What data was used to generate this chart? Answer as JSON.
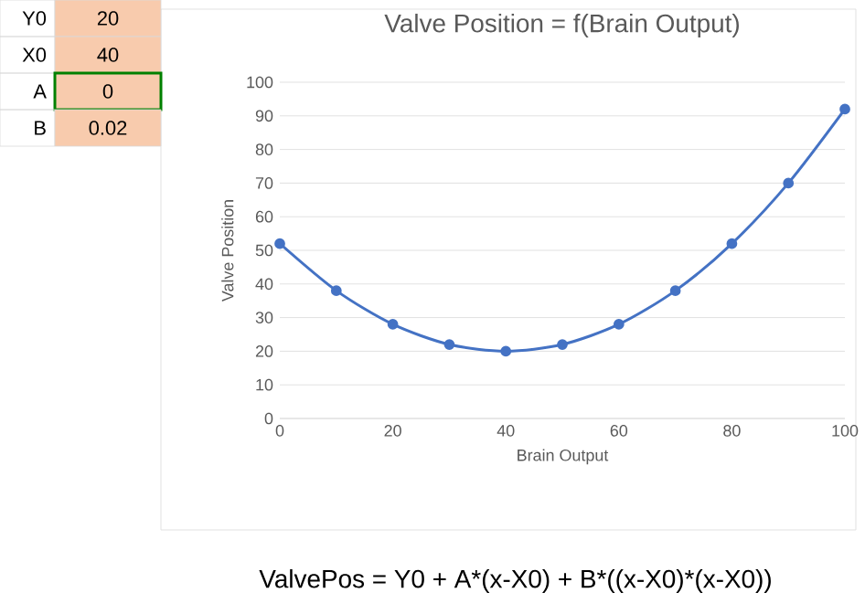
{
  "chart_data": {
    "type": "line",
    "title": "Valve Position = f(Brain Output)",
    "xlabel": "Brain Output",
    "ylabel": "Valve Position",
    "x": [
      0,
      10,
      20,
      30,
      40,
      50,
      60,
      70,
      80,
      90,
      100
    ],
    "series": [
      {
        "color": "#4472c4",
        "values": [
          52,
          38,
          28,
          22,
          20,
          22,
          28,
          38,
          52,
          70,
          92
        ]
      }
    ],
    "xlim": [
      0,
      100
    ],
    "xticks": [
      0,
      20,
      40,
      60,
      80,
      100
    ],
    "ylim": [
      0,
      100
    ],
    "yticks": [
      0,
      10,
      20,
      30,
      40,
      50,
      60,
      70,
      80,
      90,
      100
    ],
    "grid": "y",
    "marker": "circle",
    "line_style": "solid",
    "annotations": [
      "Y0",
      "20",
      "X0",
      "40",
      "A",
      "0",
      "B",
      "0.02",
      "ValvePos = Y0 + A*(x-X0) + B*((x-X0)*(x-X0))"
    ]
  }
}
